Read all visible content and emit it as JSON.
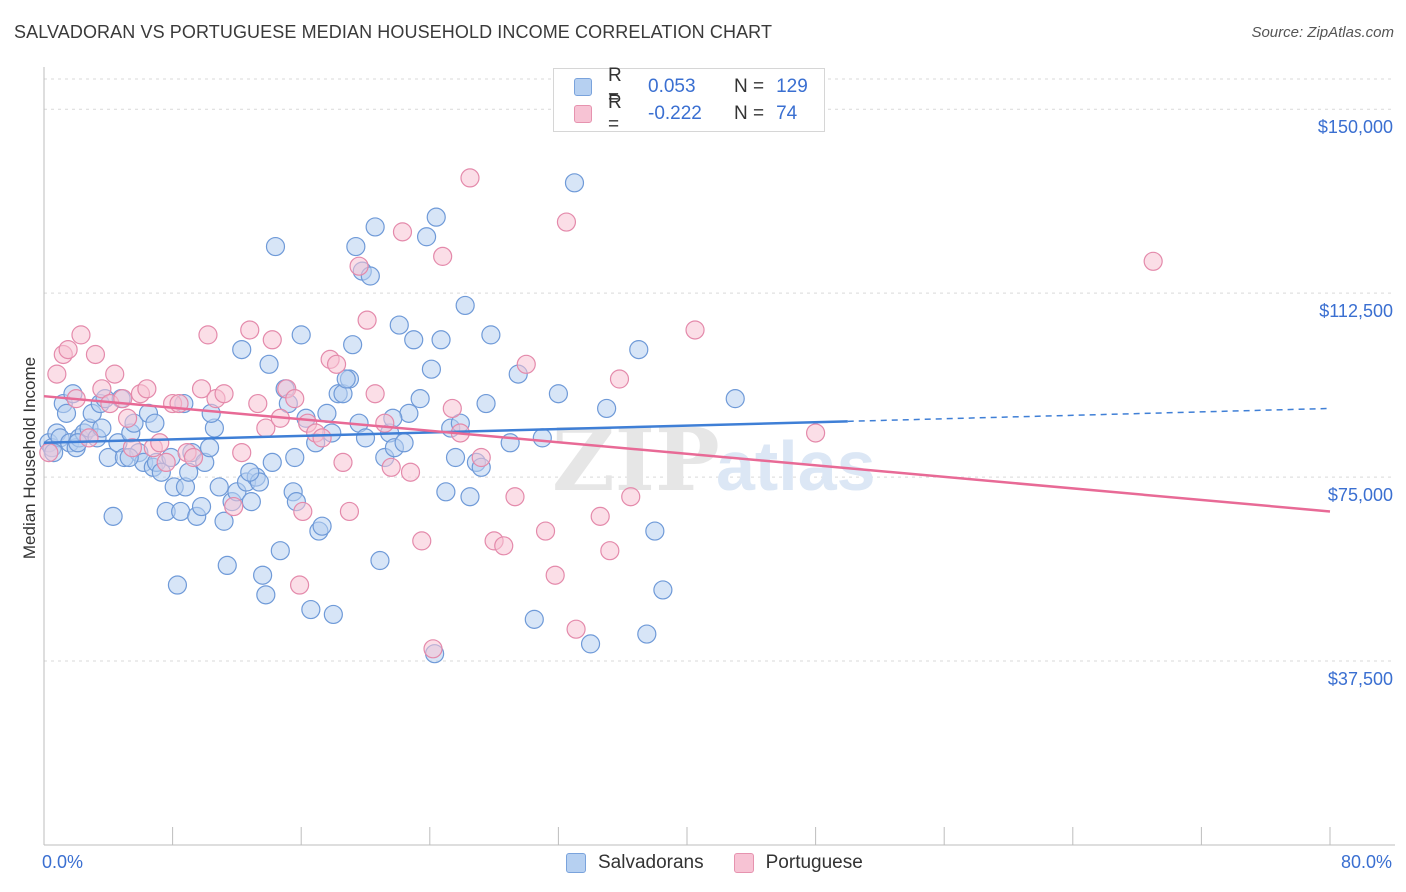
{
  "title": "SALVADORAN VS PORTUGUESE MEDIAN HOUSEHOLD INCOME CORRELATION CHART",
  "source": "Source: ZipAtlas.com",
  "watermark": {
    "zip": "ZIP",
    "atlas": "atlas"
  },
  "legend": {
    "rows": [
      {
        "r_label": "R =",
        "r_value": "0.053",
        "n_label": "N =",
        "n_value": "129"
      },
      {
        "r_label": "R =",
        "r_value": "-0.222",
        "n_label": "N =",
        "n_value": "74"
      }
    ]
  },
  "bottom_legend": {
    "series1": "Salvadorans",
    "series2": "Portuguese"
  },
  "x_axis": {
    "min_label": "0.0%",
    "max_label": "80.0%"
  },
  "colors": {
    "blue": "#3f7fd6",
    "pink": "#e86a96",
    "blue_fill": "#b6d0f1",
    "pink_fill": "#f7c3d4"
  },
  "chart_data": {
    "type": "scatter",
    "title": "SALVADORAN VS PORTUGUESE MEDIAN HOUSEHOLD INCOME CORRELATION CHART",
    "xlabel": "",
    "ylabel": "Median Household Income",
    "xlim": [
      0,
      80
    ],
    "ylim": [
      0,
      158000
    ],
    "y_ticks": [
      {
        "value": 150000,
        "label": "$150,000"
      },
      {
        "value": 112500,
        "label": "$112,500"
      },
      {
        "value": 75000,
        "label": "$75,000"
      },
      {
        "value": 37500,
        "label": "$37,500"
      }
    ],
    "x_ticks": [
      0,
      8,
      16,
      24,
      32,
      40,
      48,
      56,
      64,
      72,
      80
    ],
    "series": [
      {
        "name": "Salvadorans",
        "r": 0.053,
        "n": 129,
        "trend": {
          "x_start": 0,
          "y_start": 82000,
          "x_end": 80,
          "y_end": 89000,
          "solid_until": 50
        },
        "points": [
          [
            0.3,
            82
          ],
          [
            0.5,
            81
          ],
          [
            0.8,
            84
          ],
          [
            1.0,
            83
          ],
          [
            1.2,
            90
          ],
          [
            1.4,
            88
          ],
          [
            1.6,
            82
          ],
          [
            1.8,
            92
          ],
          [
            2.0,
            81
          ],
          [
            2.2,
            83
          ],
          [
            2.5,
            84
          ],
          [
            2.8,
            85
          ],
          [
            3.0,
            88
          ],
          [
            3.3,
            83
          ],
          [
            3.5,
            90
          ],
          [
            3.8,
            91
          ],
          [
            4.0,
            79
          ],
          [
            4.3,
            67
          ],
          [
            4.6,
            82
          ],
          [
            4.8,
            91
          ],
          [
            5.0,
            79
          ],
          [
            5.4,
            84
          ],
          [
            5.6,
            86
          ],
          [
            5.9,
            80
          ],
          [
            6.2,
            78
          ],
          [
            6.5,
            88
          ],
          [
            6.8,
            77
          ],
          [
            7.0,
            78
          ],
          [
            7.3,
            76
          ],
          [
            7.6,
            68
          ],
          [
            7.9,
            79
          ],
          [
            8.1,
            73
          ],
          [
            8.3,
            53
          ],
          [
            8.5,
            68
          ],
          [
            8.8,
            73
          ],
          [
            9.0,
            76
          ],
          [
            9.2,
            80
          ],
          [
            9.5,
            67
          ],
          [
            9.8,
            69
          ],
          [
            10.0,
            78
          ],
          [
            10.3,
            81
          ],
          [
            10.6,
            85
          ],
          [
            10.9,
            73
          ],
          [
            11.2,
            66
          ],
          [
            11.4,
            57
          ],
          [
            11.7,
            70
          ],
          [
            12.0,
            72
          ],
          [
            12.3,
            101
          ],
          [
            12.6,
            74
          ],
          [
            12.9,
            70
          ],
          [
            13.2,
            75
          ],
          [
            13.4,
            74
          ],
          [
            13.6,
            55
          ],
          [
            13.8,
            51
          ],
          [
            14.0,
            98
          ],
          [
            14.2,
            78
          ],
          [
            14.4,
            122
          ],
          [
            14.7,
            60
          ],
          [
            15.0,
            93
          ],
          [
            15.2,
            90
          ],
          [
            15.5,
            72
          ],
          [
            15.7,
            70
          ],
          [
            16.0,
            104
          ],
          [
            16.3,
            87
          ],
          [
            16.6,
            48
          ],
          [
            16.9,
            82
          ],
          [
            17.1,
            64
          ],
          [
            17.3,
            65
          ],
          [
            17.6,
            88
          ],
          [
            17.9,
            84
          ],
          [
            18.0,
            47
          ],
          [
            18.3,
            92
          ],
          [
            18.6,
            92
          ],
          [
            19.0,
            95
          ],
          [
            19.2,
            102
          ],
          [
            19.4,
            122
          ],
          [
            19.6,
            86
          ],
          [
            19.8,
            117
          ],
          [
            20.0,
            83
          ],
          [
            20.3,
            116
          ],
          [
            20.6,
            126
          ],
          [
            20.9,
            58
          ],
          [
            21.2,
            79
          ],
          [
            21.5,
            84
          ],
          [
            21.8,
            81
          ],
          [
            22.1,
            106
          ],
          [
            22.4,
            82
          ],
          [
            22.7,
            88
          ],
          [
            23.0,
            103
          ],
          [
            23.4,
            91
          ],
          [
            23.8,
            124
          ],
          [
            24.1,
            97
          ],
          [
            24.4,
            128
          ],
          [
            24.7,
            103
          ],
          [
            25.0,
            72
          ],
          [
            25.3,
            85
          ],
          [
            25.6,
            79
          ],
          [
            25.9,
            86
          ],
          [
            26.2,
            110
          ],
          [
            26.5,
            71
          ],
          [
            26.9,
            78
          ],
          [
            27.2,
            77
          ],
          [
            27.5,
            90
          ],
          [
            27.8,
            104
          ],
          [
            29.0,
            82
          ],
          [
            29.5,
            96
          ],
          [
            30.5,
            46
          ],
          [
            31.0,
            83
          ],
          [
            32.0,
            92
          ],
          [
            33.0,
            135
          ],
          [
            34.0,
            41
          ],
          [
            35.0,
            89
          ],
          [
            37.0,
            101
          ],
          [
            37.5,
            43
          ],
          [
            38.0,
            64
          ],
          [
            38.5,
            52
          ],
          [
            43.0,
            91
          ],
          [
            0.6,
            80
          ],
          [
            2.1,
            82
          ],
          [
            3.6,
            85
          ],
          [
            5.3,
            79
          ],
          [
            6.9,
            86
          ],
          [
            8.7,
            90
          ],
          [
            10.4,
            88
          ],
          [
            12.8,
            76
          ],
          [
            15.6,
            79
          ],
          [
            18.8,
            95
          ],
          [
            21.7,
            87
          ],
          [
            24.3,
            39
          ]
        ]
      },
      {
        "name": "Portuguese",
        "r": -0.222,
        "n": 74,
        "trend": {
          "x_start": 0,
          "y_start": 91500,
          "x_end": 80,
          "y_end": 68000
        },
        "points": [
          [
            0.3,
            80
          ],
          [
            0.8,
            96
          ],
          [
            1.2,
            100
          ],
          [
            1.5,
            101
          ],
          [
            2.0,
            91
          ],
          [
            2.3,
            104
          ],
          [
            2.8,
            83
          ],
          [
            3.2,
            100
          ],
          [
            3.6,
            93
          ],
          [
            4.1,
            90
          ],
          [
            4.4,
            96
          ],
          [
            4.9,
            91
          ],
          [
            5.2,
            87
          ],
          [
            5.5,
            81
          ],
          [
            6.0,
            92
          ],
          [
            6.4,
            93
          ],
          [
            6.8,
            81
          ],
          [
            7.2,
            82
          ],
          [
            7.6,
            78
          ],
          [
            8.0,
            90
          ],
          [
            8.4,
            90
          ],
          [
            8.9,
            80
          ],
          [
            9.3,
            79
          ],
          [
            9.8,
            93
          ],
          [
            10.2,
            104
          ],
          [
            10.7,
            91
          ],
          [
            11.2,
            92
          ],
          [
            11.8,
            69
          ],
          [
            12.3,
            80
          ],
          [
            12.8,
            105
          ],
          [
            13.3,
            90
          ],
          [
            13.8,
            85
          ],
          [
            14.2,
            103
          ],
          [
            14.7,
            87
          ],
          [
            15.1,
            93
          ],
          [
            15.6,
            91
          ],
          [
            15.9,
            53
          ],
          [
            16.1,
            68
          ],
          [
            16.4,
            86
          ],
          [
            16.9,
            84
          ],
          [
            17.3,
            83
          ],
          [
            17.8,
            99
          ],
          [
            18.2,
            98
          ],
          [
            18.6,
            78
          ],
          [
            19.0,
            68
          ],
          [
            19.6,
            118
          ],
          [
            20.1,
            107
          ],
          [
            20.6,
            92
          ],
          [
            21.2,
            86
          ],
          [
            21.6,
            77
          ],
          [
            22.3,
            125
          ],
          [
            22.8,
            76
          ],
          [
            23.5,
            62
          ],
          [
            24.2,
            40
          ],
          [
            24.8,
            120
          ],
          [
            25.4,
            89
          ],
          [
            25.9,
            84
          ],
          [
            26.5,
            136
          ],
          [
            27.2,
            79
          ],
          [
            28.0,
            62
          ],
          [
            28.6,
            61
          ],
          [
            29.3,
            71
          ],
          [
            30.0,
            98
          ],
          [
            31.2,
            64
          ],
          [
            31.8,
            55
          ],
          [
            32.5,
            127
          ],
          [
            33.1,
            44
          ],
          [
            34.6,
            67
          ],
          [
            35.2,
            60
          ],
          [
            35.8,
            95
          ],
          [
            36.5,
            71
          ],
          [
            40.5,
            105
          ],
          [
            48.0,
            84
          ],
          [
            69.0,
            119
          ]
        ]
      }
    ]
  }
}
